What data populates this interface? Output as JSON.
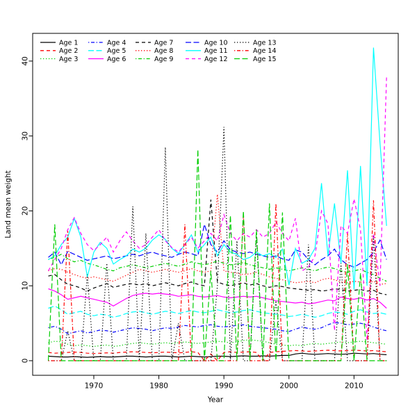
{
  "figure": {
    "background": "#ffffff"
  },
  "chart_data": {
    "type": "line",
    "title": "",
    "xlabel": "Year",
    "ylabel": "Land mean weight",
    "x_ticks": [
      1970,
      1980,
      1990,
      2000,
      2010
    ],
    "y_ticks": [
      0,
      10,
      20,
      30,
      40
    ],
    "xlim": [
      1960.6,
      2016.8
    ],
    "ylim": [
      -1.95,
      43.7
    ],
    "grid": false,
    "legend": {
      "position": "top-left",
      "ncol": 5,
      "box": false
    },
    "line_colors": {
      "black": "#000000",
      "red": "#ff0000",
      "green": "#00cd00",
      "blue": "#0000ff",
      "cyan": "#00ffff",
      "magenta": "#ff00ff"
    },
    "years": [
      1963,
      1964,
      1965,
      1966,
      1967,
      1968,
      1969,
      1970,
      1971,
      1972,
      1973,
      1974,
      1975,
      1976,
      1977,
      1978,
      1979,
      1980,
      1981,
      1982,
      1983,
      1984,
      1985,
      1986,
      1987,
      1988,
      1989,
      1990,
      1991,
      1992,
      1993,
      1994,
      1995,
      1996,
      1997,
      1998,
      1999,
      2000,
      2001,
      2002,
      2003,
      2004,
      2005,
      2006,
      2007,
      2008,
      2009,
      2010,
      2011,
      2012,
      2013,
      2014,
      2015
    ],
    "series": [
      {
        "name": "Age 1",
        "color": "#000000",
        "linetype": "solid",
        "values": [
          0.6,
          0.55,
          0.5,
          0.5,
          0.55,
          0.5,
          0.45,
          0.5,
          0.55,
          0.5,
          0.5,
          0.55,
          0.6,
          0.6,
          0.55,
          0.5,
          0.55,
          0.6,
          0.6,
          0.55,
          0.5,
          0.55,
          0.6,
          0.55,
          0.5,
          0.55,
          0.6,
          0.6,
          0.55,
          0.6,
          0.65,
          0.6,
          0.6,
          0.65,
          0.6,
          0.65,
          0.7,
          0.7,
          0.9,
          1.0,
          0.9,
          0.85,
          0.9,
          0.95,
          0.9,
          0.85,
          0.9,
          1.0,
          0.95,
          0.9,
          0.95,
          0.85,
          0.8
        ]
      },
      {
        "name": "Age 2",
        "color": "#ff0000",
        "linetype": "dashed",
        "values": [
          1.1,
          1.0,
          1.05,
          1.1,
          1.15,
          1.1,
          1.0,
          0.95,
          1.0,
          1.05,
          1.0,
          1.1,
          1.15,
          1.2,
          1.15,
          1.1,
          1.05,
          1.1,
          1.15,
          1.1,
          1.05,
          1.1,
          1.2,
          1.1,
          0.0,
          0.9,
          0.0,
          1.1,
          1.2,
          1.1,
          1.15,
          1.2,
          1.1,
          0.0,
          1.1,
          1.2,
          1.25,
          1.3,
          1.35,
          1.3,
          1.25,
          1.3,
          1.35,
          1.4,
          1.35,
          1.3,
          1.35,
          1.4,
          1.35,
          1.3,
          1.35,
          1.25,
          1.2
        ]
      },
      {
        "name": "Age 3",
        "color": "#00cd00",
        "linetype": "dotted",
        "values": [
          2.4,
          2.6,
          2.5,
          2.2,
          2.0,
          2.1,
          2.0,
          1.9,
          2.0,
          2.1,
          1.9,
          2.0,
          2.2,
          2.3,
          2.4,
          2.3,
          2.2,
          2.3,
          2.4,
          2.3,
          2.4,
          2.5,
          2.4,
          2.3,
          2.4,
          2.5,
          2.6,
          2.5,
          2.4,
          2.5,
          2.7,
          2.8,
          2.7,
          2.6,
          2.4,
          2.2,
          2.1,
          2.0,
          2.1,
          2.0,
          2.2,
          2.3,
          2.2,
          2.3,
          2.4,
          2.5,
          2.4,
          2.5,
          2.6,
          2.5,
          2.4,
          2.3,
          2.2
        ]
      },
      {
        "name": "Age 4",
        "color": "#0000ff",
        "linetype": "dotdash",
        "values": [
          4.4,
          4.6,
          4.2,
          3.6,
          3.8,
          4.0,
          3.7,
          3.9,
          4.1,
          4.0,
          3.8,
          4.0,
          4.2,
          4.4,
          4.3,
          4.2,
          4.0,
          4.2,
          4.4,
          4.3,
          4.5,
          4.7,
          4.6,
          4.5,
          4.7,
          4.8,
          4.6,
          4.5,
          4.6,
          4.7,
          4.8,
          4.6,
          4.5,
          4.4,
          4.3,
          4.2,
          4.0,
          3.9,
          4.2,
          4.5,
          4.3,
          4.2,
          4.4,
          4.8,
          5.1,
          5.0,
          4.8,
          4.9,
          5.0,
          4.8,
          4.5,
          4.2,
          4.0
        ]
      },
      {
        "name": "Age 5",
        "color": "#00ffff",
        "linetype": "longdash",
        "values": [
          7.0,
          7.3,
          6.8,
          6.2,
          6.4,
          6.6,
          6.2,
          6.0,
          6.2,
          6.1,
          5.8,
          6.0,
          6.3,
          6.5,
          6.6,
          6.4,
          6.2,
          6.4,
          6.6,
          6.5,
          6.3,
          6.5,
          6.7,
          6.5,
          6.4,
          6.6,
          6.8,
          6.6,
          6.4,
          6.5,
          6.7,
          6.8,
          6.6,
          6.4,
          6.3,
          6.2,
          6.1,
          5.9,
          6.0,
          6.2,
          6.0,
          5.8,
          6.0,
          6.3,
          6.5,
          6.4,
          6.2,
          6.6,
          6.8,
          6.5,
          6.3,
          6.4,
          6.2
        ]
      },
      {
        "name": "Age 6",
        "color": "#ff00ff",
        "linetype": "solid",
        "values": [
          9.6,
          9.3,
          8.8,
          8.2,
          8.4,
          8.6,
          8.4,
          8.2,
          8.0,
          7.8,
          7.3,
          7.8,
          8.3,
          8.7,
          8.9,
          9.0,
          8.9,
          9.0,
          8.9,
          8.8,
          8.6,
          8.7,
          8.8,
          8.6,
          8.5,
          8.6,
          8.7,
          8.5,
          8.4,
          8.5,
          8.6,
          8.5,
          8.6,
          8.4,
          8.2,
          8.0,
          7.9,
          7.8,
          7.7,
          7.8,
          7.6,
          7.7,
          7.9,
          8.1,
          8.0,
          8.5,
          8.3,
          8.2,
          8.4,
          8.1,
          8.3,
          7.8,
          7.0
        ]
      },
      {
        "name": "Age 7",
        "color": "#000000",
        "linetype": "dashed",
        "values": [
          11.3,
          11.5,
          10.8,
          10.2,
          10.0,
          9.7,
          9.3,
          9.7,
          10.0,
          10.3,
          9.8,
          10.0,
          10.2,
          10.3,
          10.1,
          10.3,
          10.0,
          10.2,
          10.4,
          10.2,
          10.0,
          10.3,
          10.5,
          10.2,
          10.0,
          21.5,
          10.5,
          10.2,
          10.0,
          10.2,
          10.4,
          10.1,
          10.3,
          10.0,
          9.8,
          10.0,
          9.9,
          9.7,
          9.6,
          9.5,
          9.4,
          9.5,
          9.3,
          9.4,
          9.6,
          9.5,
          9.3,
          9.4,
          9.5,
          9.3,
          9.4,
          9.0,
          8.8
        ]
      },
      {
        "name": "Age 8",
        "color": "#ff0000",
        "linetype": "dotted",
        "values": [
          12.0,
          12.3,
          12.2,
          11.8,
          11.5,
          11.2,
          11.0,
          11.2,
          11.0,
          10.8,
          10.6,
          11.0,
          11.4,
          11.8,
          12.2,
          12.0,
          11.8,
          12.0,
          12.2,
          12.0,
          11.8,
          12.0,
          12.3,
          12.0,
          11.8,
          12.0,
          22.2,
          12.0,
          11.8,
          11.7,
          11.5,
          11.6,
          11.8,
          11.5,
          11.2,
          11.0,
          10.8,
          10.6,
          10.4,
          10.5,
          10.6,
          10.4,
          10.8,
          11.0,
          10.8,
          10.5,
          10.4,
          10.6,
          10.5,
          10.4,
          10.6,
          10.2,
          10.3
        ]
      },
      {
        "name": "Age 9",
        "color": "#00cd00",
        "linetype": "dotdash",
        "values": [
          13.5,
          13.8,
          14.2,
          13.6,
          13.2,
          13.4,
          13.0,
          12.8,
          12.5,
          12.2,
          12.0,
          12.4,
          12.6,
          12.8,
          12.6,
          12.4,
          12.6,
          12.8,
          13.0,
          12.8,
          12.6,
          12.9,
          13.2,
          13.0,
          12.8,
          13.0,
          13.3,
          13.0,
          12.8,
          12.9,
          13.1,
          12.8,
          12.6,
          12.4,
          12.2,
          12.4,
          12.2,
          12.0,
          12.2,
          12.4,
          12.2,
          12.0,
          12.3,
          12.5,
          12.3,
          12.0,
          11.8,
          12.0,
          12.2,
          11.8,
          11.5,
          11.0,
          10.6
        ]
      },
      {
        "name": "Age 10",
        "color": "#0000ff",
        "linetype": "longdash",
        "values": [
          13.8,
          14.5,
          12.8,
          14.6,
          14.2,
          13.8,
          13.4,
          13.6,
          13.8,
          14.0,
          13.6,
          13.8,
          14.0,
          14.2,
          14.0,
          14.3,
          14.5,
          14.2,
          14.0,
          13.8,
          14.2,
          14.5,
          14.3,
          14.0,
          18.2,
          15.5,
          14.5,
          16.0,
          14.8,
          14.5,
          14.3,
          14.5,
          14.2,
          14.0,
          13.8,
          14.0,
          13.6,
          13.4,
          14.8,
          14.5,
          13.5,
          12.8,
          13.5,
          14.0,
          14.9,
          13.5,
          12.8,
          12.5,
          13.0,
          13.5,
          14.5,
          16.1,
          13.5
        ]
      },
      {
        "name": "Age 11",
        "color": "#00ffff",
        "linetype": "solid",
        "values": [
          13.5,
          14.0,
          15.5,
          16.5,
          19.0,
          16.5,
          11.2,
          14.5,
          15.8,
          15.0,
          12.9,
          13.5,
          14.0,
          14.9,
          14.5,
          15.0,
          16.1,
          16.8,
          16.2,
          15.0,
          14.3,
          15.5,
          16.8,
          14.5,
          15.5,
          16.5,
          14.0,
          15.5,
          14.5,
          14.2,
          13.5,
          13.8,
          14.5,
          14.0,
          14.3,
          13.8,
          14.9,
          10.1,
          15.0,
          13.0,
          13.5,
          15.0,
          23.7,
          14.0,
          21.0,
          13.0,
          25.4,
          9.5,
          26.0,
          10.0,
          41.8,
          29.0,
          18.0
        ]
      },
      {
        "name": "Age 12",
        "color": "#ff00ff",
        "linetype": "dashed",
        "values": [
          12.0,
          13.5,
          15.0,
          17.5,
          19.1,
          17.0,
          15.5,
          14.7,
          15.5,
          16.5,
          14.5,
          16.0,
          17.2,
          16.0,
          15.0,
          15.5,
          16.5,
          17.5,
          16.0,
          15.1,
          14.5,
          15.5,
          16.5,
          15.0,
          16.0,
          17.0,
          16.0,
          19.5,
          17.0,
          16.0,
          17.0,
          16.5,
          17.5,
          16.5,
          17.0,
          18.5,
          17.0,
          16.0,
          19.0,
          12.0,
          12.5,
          14.0,
          20.0,
          18.3,
          4.0,
          18.0,
          17.0,
          21.6,
          17.5,
          2.7,
          17.0,
          10.0,
          37.9
        ]
      },
      {
        "name": "Age 13",
        "color": "#000000",
        "linetype": "dotted",
        "values": [
          0,
          0,
          0,
          4.0,
          0,
          0,
          11.5,
          0,
          0,
          13.0,
          0,
          0,
          0,
          20.6,
          0,
          17.0,
          0,
          0,
          28.5,
          0,
          5.0,
          0,
          0,
          0,
          0,
          0,
          10.0,
          31.2,
          0,
          16.0,
          0,
          0,
          16.6,
          0,
          0,
          8.0,
          0,
          0,
          0,
          0,
          15.5,
          0,
          0,
          0,
          0,
          13.0,
          0,
          0,
          0,
          0,
          16.6,
          0,
          0
        ]
      },
      {
        "name": "Age 14",
        "color": "#ff0000",
        "linetype": "dotdash",
        "values": [
          0,
          0,
          0,
          17.3,
          0,
          0,
          0,
          0,
          0,
          0,
          0,
          0,
          0,
          0,
          0,
          0,
          0,
          0,
          0,
          0,
          0,
          18.2,
          0,
          0,
          0,
          0,
          0,
          0,
          0,
          0,
          19.5,
          0,
          0,
          0,
          0,
          21.0,
          0,
          0,
          0,
          0,
          0,
          0,
          0,
          0,
          0,
          0,
          17.0,
          0,
          0,
          0,
          21.4,
          0,
          0
        ]
      },
      {
        "name": "Age 15",
        "color": "#00cd00",
        "linetype": "longdash",
        "values": [
          0,
          18.2,
          0,
          0,
          0,
          0,
          0,
          0,
          0,
          0,
          0,
          0,
          0,
          0,
          0,
          0,
          0,
          0,
          0,
          0,
          0,
          0,
          0,
          28.2,
          0,
          12.0,
          0,
          0,
          19.4,
          0,
          20.0,
          0,
          17.5,
          0,
          21.0,
          0,
          19.8,
          0,
          0,
          0,
          0,
          0,
          0,
          0,
          0,
          0,
          12.9,
          0,
          11.7,
          0,
          0,
          0,
          0
        ]
      }
    ]
  }
}
